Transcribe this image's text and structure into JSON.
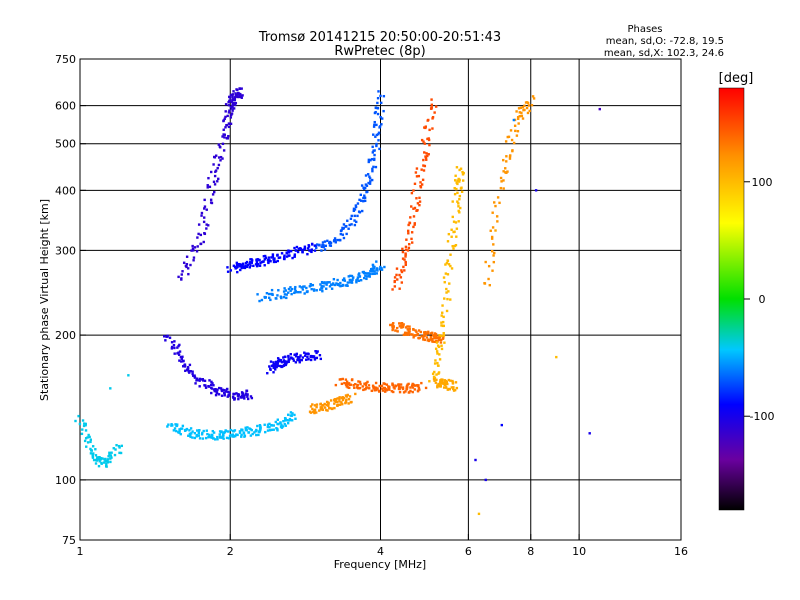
{
  "chart_data": {
    "type": "scatter",
    "title": "Tromsø 20141215 20:50:00-20:51:43",
    "subtitle": "RwPretec (8p)",
    "xlabel": "Frequency [MHz]",
    "ylabel": "Stationary phase Virtual Height [km]",
    "x_scale": "log",
    "y_scale": "log",
    "xlim": [
      1,
      16
    ],
    "ylim": [
      75,
      750
    ],
    "x_ticks": [
      1,
      2,
      4,
      6,
      8,
      10,
      16
    ],
    "y_ticks": [
      75,
      100,
      200,
      300,
      400,
      500,
      600,
      750
    ],
    "x_gridlines": [
      2,
      4,
      6,
      8,
      10
    ],
    "y_gridlines": [
      100,
      200,
      300,
      400,
      500,
      600
    ],
    "grid": true,
    "stats": {
      "header": "Phases",
      "line_o": "mean, sd,O: -72.8, 19.5",
      "line_x": "mean, sd,X: 102.3, 24.6"
    },
    "colorbar": {
      "label": "[deg]",
      "range": [
        -180,
        180
      ],
      "ticks": [
        100,
        0,
        -100
      ],
      "placement": "right"
    },
    "traces": [
      {
        "x": [
          1.0,
          1.06,
          1.12,
          1.2
        ],
        "y": [
          135,
          112,
          108,
          118
        ],
        "phase": -40
      },
      {
        "x": [
          1.5,
          1.65,
          1.8,
          1.95,
          2.1,
          2.3,
          2.5,
          2.7
        ],
        "y": [
          130,
          125,
          124,
          124,
          125,
          127,
          130,
          136
        ],
        "phase": -45
      },
      {
        "x": [
          1.5,
          1.6,
          1.75,
          1.9,
          2.05,
          2.2
        ],
        "y": [
          200,
          175,
          160,
          152,
          150,
          150
        ],
        "phase": -105
      },
      {
        "x": [
          1.6,
          1.75,
          1.85,
          1.95,
          2.0,
          2.05,
          2.1
        ],
        "y": [
          260,
          320,
          420,
          520,
          600,
          630,
          640
        ],
        "phase": -110
      },
      {
        "x": [
          2.0,
          2.15,
          2.3,
          2.5,
          2.75,
          3.0
        ],
        "y": [
          275,
          280,
          285,
          290,
          300,
          305
        ],
        "phase": -90
      },
      {
        "x": [
          2.3,
          2.6,
          2.9,
          3.2,
          3.5,
          3.8,
          4.0
        ],
        "y": [
          240,
          245,
          250,
          255,
          260,
          270,
          280
        ],
        "phase": -60
      },
      {
        "x": [
          2.4,
          2.5,
          2.6,
          2.8,
          3.0
        ],
        "y": [
          170,
          175,
          178,
          180,
          182
        ],
        "phase": -95
      },
      {
        "x": [
          2.9,
          3.1,
          3.3,
          3.5
        ],
        "y": [
          140,
          142,
          145,
          148
        ],
        "phase": 120
      },
      {
        "x": [
          3.0,
          3.3,
          3.6,
          3.8,
          3.95,
          4.0
        ],
        "y": [
          300,
          320,
          360,
          420,
          520,
          640
        ],
        "phase": -70
      },
      {
        "x": [
          3.3,
          3.6,
          3.9,
          4.2,
          4.5,
          4.9
        ],
        "y": [
          160,
          158,
          156,
          155,
          155,
          156
        ],
        "phase": 140
      },
      {
        "x": [
          4.3,
          4.5,
          4.7,
          4.9,
          5.1
        ],
        "y": [
          250,
          300,
          380,
          480,
          620
        ],
        "phase": 150
      },
      {
        "x": [
          4.2,
          4.5,
          4.8,
          5.1,
          5.3
        ],
        "y": [
          210,
          205,
          200,
          198,
          196
        ],
        "phase": 135
      },
      {
        "x": [
          5.1,
          5.3,
          5.5,
          5.7,
          5.8
        ],
        "y": [
          160,
          200,
          280,
          380,
          450
        ],
        "phase": 100
      },
      {
        "x": [
          5.2,
          5.4,
          5.6
        ],
        "y": [
          160,
          158,
          156
        ],
        "phase": 110
      },
      {
        "x": [
          6.5,
          7.0,
          7.5,
          8.0
        ],
        "y": [
          250,
          420,
          560,
          620
        ],
        "phase": 120
      }
    ],
    "scattered_points": [
      {
        "x": 6.2,
        "y": 110,
        "phase": -100
      },
      {
        "x": 6.5,
        "y": 100,
        "phase": -100
      },
      {
        "x": 6.3,
        "y": 85,
        "phase": 100
      },
      {
        "x": 7.0,
        "y": 130,
        "phase": -90
      },
      {
        "x": 8.2,
        "y": 400,
        "phase": -100
      },
      {
        "x": 9.0,
        "y": 180,
        "phase": 100
      },
      {
        "x": 11.0,
        "y": 590,
        "phase": -120
      },
      {
        "x": 10.5,
        "y": 125,
        "phase": -100
      },
      {
        "x": 1.25,
        "y": 165,
        "phase": -40
      },
      {
        "x": 1.15,
        "y": 155,
        "phase": -40
      },
      {
        "x": 7.4,
        "y": 560,
        "phase": -60
      },
      {
        "x": 6.8,
        "y": 330,
        "phase": 110
      }
    ]
  }
}
